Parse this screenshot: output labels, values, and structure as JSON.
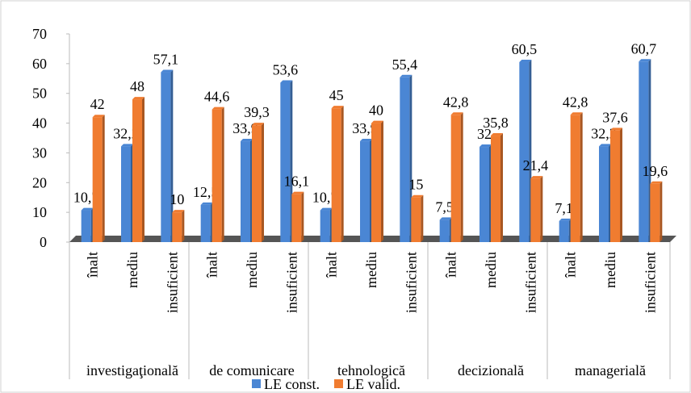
{
  "chart_data": {
    "type": "bar",
    "groups": [
      "investigaţională",
      "de comunicare",
      "tehnologică",
      "decizională",
      "managerială"
    ],
    "categories": [
      "înalt",
      "mediu",
      "insuficient",
      "înalt",
      "mediu",
      "insuficient",
      "înalt",
      "mediu",
      "insuficient",
      "înalt",
      "mediu",
      "insuficient",
      "înalt",
      "mediu",
      "insuficient"
    ],
    "series": [
      {
        "name": "LE const.",
        "color": "#4a86d4",
        "values": [
          10.7,
          32.2,
          57.1,
          12.5,
          33.9,
          53.6,
          10.7,
          33.9,
          55.4,
          7.5,
          32,
          60.5,
          7.1,
          32.2,
          60.7
        ],
        "value_labels": [
          "10,7",
          "32,2",
          "57,1",
          "12,5",
          "33,9",
          "53,6",
          "10,7",
          "33,9",
          "55,4",
          "7,5",
          "32",
          "60,5",
          "7,1",
          "32,2",
          "60,7"
        ]
      },
      {
        "name": "LE valid.",
        "color": "#f07c30",
        "values": [
          42,
          48,
          10,
          44.6,
          39.3,
          16.1,
          45,
          40,
          15,
          42.8,
          35.8,
          21.4,
          42.8,
          37.6,
          19.6
        ],
        "value_labels": [
          "42",
          "48",
          "10",
          "44,6",
          "39,3",
          "16,1",
          "45",
          "40",
          "15",
          "42,8",
          "35,8",
          "21,4",
          "42,8",
          "37,6",
          "19,6"
        ]
      }
    ],
    "ylim": [
      0,
      70
    ],
    "yticks": [
      0,
      10,
      20,
      30,
      40,
      50,
      60,
      70
    ]
  }
}
